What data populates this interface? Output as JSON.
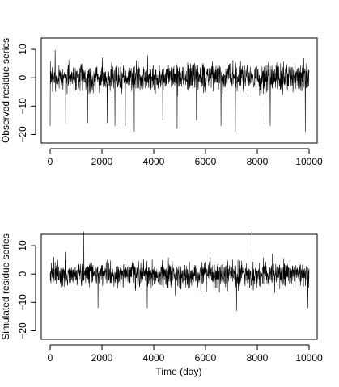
{
  "chart_data": [
    {
      "type": "line",
      "title": "",
      "xlabel": "",
      "ylabel": "Observed residue series",
      "xlim": [
        0,
        10000
      ],
      "ylim": [
        -23,
        14
      ],
      "xticks": [
        0,
        2000,
        4000,
        6000,
        8000,
        10000
      ],
      "xtick_labels": [
        "0",
        "2000",
        "4000",
        "6000",
        "8000",
        "10000"
      ],
      "yticks": [
        -20,
        -10,
        0,
        10
      ],
      "ytick_labels": [
        "−20",
        "−10",
        "0",
        "10"
      ],
      "grid": false,
      "legend": "none",
      "line_color": "#000000",
      "series": [
        {
          "x_start": 0,
          "x_end": 10000,
          "envelope": {
            "mean": 0,
            "upper": 8,
            "lower": -8
          },
          "spikes": [
            {
              "x": 0,
              "y": -17
            },
            {
              "x": 600,
              "y": -16
            },
            {
              "x": 1450,
              "y": -16
            },
            {
              "x": 2200,
              "y": -16
            },
            {
              "x": 2500,
              "y": -17
            },
            {
              "x": 2580,
              "y": -17
            },
            {
              "x": 2900,
              "y": -17
            },
            {
              "x": 3250,
              "y": -19
            },
            {
              "x": 4350,
              "y": -15
            },
            {
              "x": 4900,
              "y": -18
            },
            {
              "x": 5650,
              "y": -15
            },
            {
              "x": 6600,
              "y": -17
            },
            {
              "x": 7150,
              "y": -19
            },
            {
              "x": 7300,
              "y": -20
            },
            {
              "x": 8300,
              "y": -16
            },
            {
              "x": 8500,
              "y": -17
            },
            {
              "x": 9850,
              "y": -19
            }
          ]
        }
      ]
    },
    {
      "type": "line",
      "title": "",
      "xlabel": "Time (day)",
      "ylabel": "Simulated residue series",
      "xlim": [
        0,
        10000
      ],
      "ylim": [
        -23,
        14
      ],
      "xticks": [
        0,
        2000,
        4000,
        6000,
        8000,
        10000
      ],
      "xtick_labels": [
        "0",
        "2000",
        "4000",
        "6000",
        "8000",
        "10000"
      ],
      "yticks": [
        -20,
        -10,
        0,
        10
      ],
      "ytick_labels": [
        "−20",
        "−10",
        "0",
        "10"
      ],
      "grid": false,
      "legend": "none",
      "line_color": "#000000",
      "series": [
        {
          "x_start": 0,
          "x_end": 10000,
          "envelope": {
            "mean": 0,
            "upper": 7,
            "lower": -8
          },
          "spikes": [
            {
              "x": 1300,
              "y": 15
            },
            {
              "x": 7800,
              "y": 15
            },
            {
              "x": 1850,
              "y": -12
            },
            {
              "x": 3750,
              "y": -12
            },
            {
              "x": 7200,
              "y": -13
            },
            {
              "x": 9950,
              "y": -12
            }
          ]
        }
      ]
    }
  ]
}
